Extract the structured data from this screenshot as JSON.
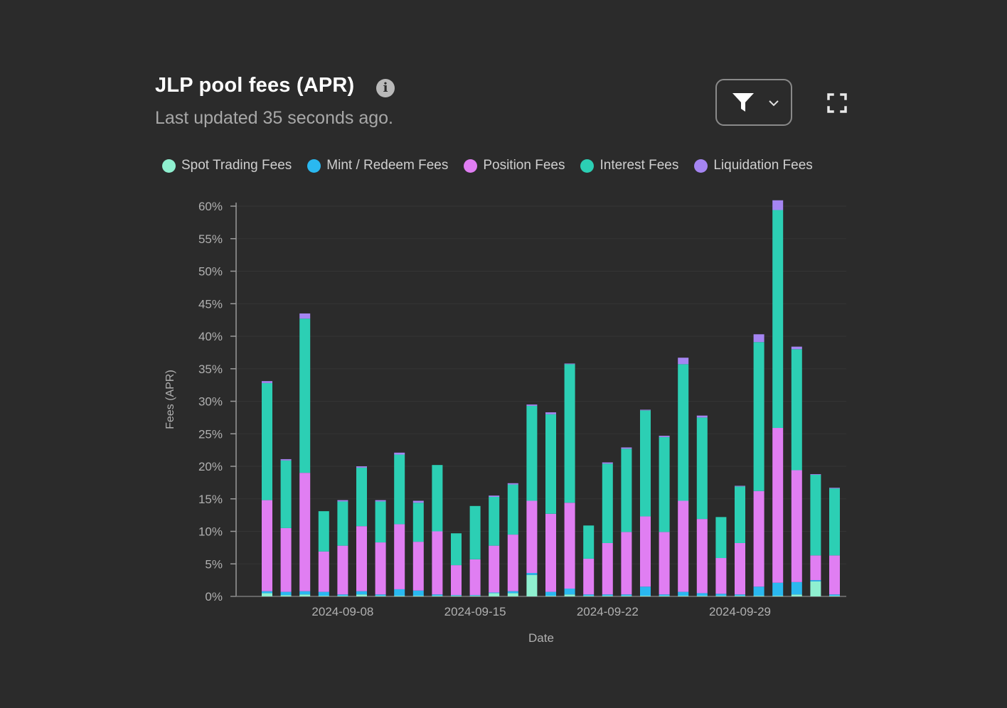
{
  "header": {
    "title": "JLP pool fees (APR)",
    "subtitle": "Last updated 35 seconds ago."
  },
  "icons": {
    "info": "info-icon",
    "filter": "filter-funnel-icon",
    "dropdown": "chevron-down-icon",
    "fullscreen": "fullscreen-icon"
  },
  "colors": {
    "spot": "#8ff0d0",
    "mint": "#2ab8f0",
    "position": "#e07ef2",
    "interest": "#2ccfb4",
    "liquidation": "#a585f2"
  },
  "chart_data": {
    "type": "bar",
    "stacked": true,
    "xlabel": "Date",
    "ylabel": "Fees (APR)",
    "ylim": [
      0,
      60
    ],
    "y_ticks": [
      "0%",
      "5%",
      "10%",
      "15%",
      "20%",
      "25%",
      "30%",
      "35%",
      "40%",
      "45%",
      "50%",
      "55%",
      "60%"
    ],
    "x_tick_labels": [
      "2024-09-08",
      "2024-09-15",
      "2024-09-22",
      "2024-09-29"
    ],
    "grid": true,
    "legend_position": "top-left",
    "categories": [
      "2024-09-04",
      "2024-09-05",
      "2024-09-06",
      "2024-09-07",
      "2024-09-08",
      "2024-09-09",
      "2024-09-10",
      "2024-09-11",
      "2024-09-12",
      "2024-09-13",
      "2024-09-14",
      "2024-09-15",
      "2024-09-16",
      "2024-09-17",
      "2024-09-18",
      "2024-09-19",
      "2024-09-20",
      "2024-09-21",
      "2024-09-22",
      "2024-09-23",
      "2024-09-24",
      "2024-09-25",
      "2024-09-26",
      "2024-09-27",
      "2024-09-28",
      "2024-09-29",
      "2024-09-30",
      "2024-10-01",
      "2024-10-02",
      "2024-10-03",
      "2024-10-04"
    ],
    "series": [
      {
        "name": "Spot Trading Fees",
        "values": [
          0.5,
          0.2,
          0.3,
          0.1,
          0.1,
          0.3,
          0.1,
          0.1,
          0.1,
          0.1,
          0.1,
          0.1,
          0.5,
          0.5,
          3.3,
          0.1,
          0.3,
          0.1,
          0.1,
          0.1,
          0.1,
          0.1,
          0.1,
          0.1,
          0.1,
          0.1,
          0.1,
          0.1,
          0.3,
          2.3,
          0.1
        ]
      },
      {
        "name": "Mint / Redeem Fees",
        "values": [
          0.3,
          0.5,
          0.5,
          0.6,
          0.2,
          0.5,
          0.2,
          1.0,
          0.8,
          0.2,
          0.1,
          0.1,
          0.1,
          0.3,
          0.3,
          0.6,
          0.9,
          0.2,
          0.2,
          0.2,
          1.4,
          0.2,
          0.6,
          0.4,
          0.3,
          0.2,
          1.4,
          2.0,
          1.9,
          0.2,
          0.2
        ]
      },
      {
        "name": "Position Fees",
        "values": [
          14.0,
          9.8,
          18.2,
          6.2,
          7.5,
          10.0,
          8.0,
          10.0,
          7.5,
          9.7,
          4.6,
          5.5,
          7.2,
          8.7,
          11.1,
          12.0,
          13.2,
          5.5,
          7.9,
          9.6,
          10.8,
          9.6,
          14.0,
          11.4,
          5.5,
          7.9,
          14.7,
          23.8,
          17.2,
          3.8,
          6.0
        ]
      },
      {
        "name": "Interest Fees",
        "values": [
          18.0,
          10.4,
          23.7,
          6.2,
          6.8,
          9.0,
          6.3,
          10.7,
          6.0,
          10.2,
          4.9,
          8.2,
          7.5,
          7.7,
          14.6,
          15.3,
          21.3,
          5.1,
          12.2,
          12.8,
          16.3,
          14.6,
          21.0,
          15.6,
          6.3,
          8.7,
          22.9,
          33.5,
          18.6,
          12.4,
          10.3
        ]
      },
      {
        "name": "Liquidation Fees",
        "values": [
          0.3,
          0.2,
          0.8,
          0.0,
          0.2,
          0.2,
          0.2,
          0.3,
          0.3,
          0.0,
          0.0,
          0.0,
          0.2,
          0.2,
          0.2,
          0.3,
          0.1,
          0.0,
          0.2,
          0.2,
          0.1,
          0.2,
          1.0,
          0.3,
          0.0,
          0.1,
          1.2,
          1.5,
          0.4,
          0.1,
          0.1
        ]
      }
    ]
  }
}
